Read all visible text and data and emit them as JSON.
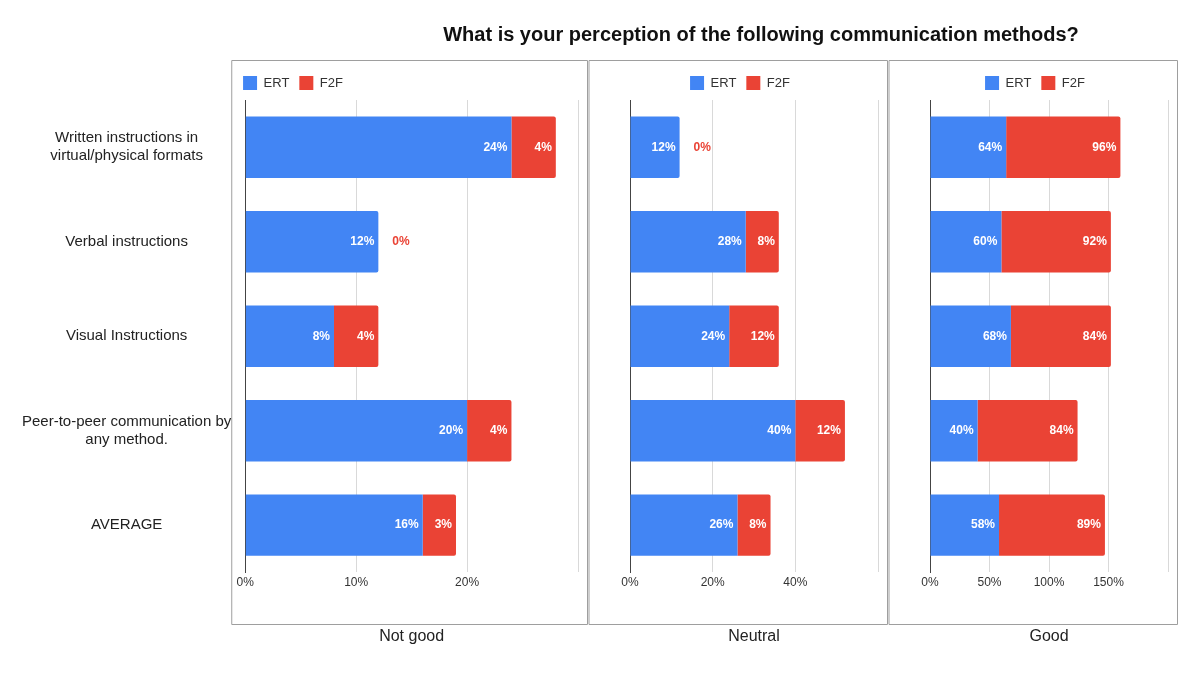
{
  "chart_data": [
    {
      "type": "bar",
      "orientation": "horizontal",
      "stacked": true,
      "title": "What is your perception of the following communication methods?",
      "xlabel": "Not good",
      "categories": [
        "Written instructions in virtual/physical formats",
        "Verbal instructions",
        "Visual Instructions",
        "Peer-to-peer communication by any method.",
        "AVERAGE"
      ],
      "series": [
        {
          "name": "ERT",
          "color": "#4285f4",
          "values": [
            24,
            12,
            8,
            20,
            16
          ],
          "value_labels": [
            "24%",
            "12%",
            "8%",
            "20%",
            "16%"
          ]
        },
        {
          "name": "F2F",
          "color": "#ea4335",
          "values": [
            4,
            0,
            4,
            4,
            3
          ],
          "value_labels": [
            "4%",
            "0%",
            "4%",
            "4%",
            "3%"
          ]
        }
      ],
      "xlim": [
        0,
        30
      ],
      "xticks": [
        {
          "value": 0,
          "label": "0%"
        },
        {
          "value": 10,
          "label": "10%"
        },
        {
          "value": 20,
          "label": "20%"
        },
        {
          "value": 30,
          "label": null
        }
      ],
      "grid": "x",
      "legend": "top"
    },
    {
      "type": "bar",
      "orientation": "horizontal",
      "stacked": true,
      "xlabel": "Neutral",
      "categories": [
        null,
        null,
        null,
        null,
        null
      ],
      "series": [
        {
          "name": "ERT",
          "color": "#4285f4",
          "values": [
            12,
            28,
            24,
            40,
            26
          ],
          "value_labels": [
            "12%",
            "28%",
            "24%",
            "40%",
            "26%"
          ]
        },
        {
          "name": "F2F",
          "color": "#ea4335",
          "values": [
            0,
            8,
            12,
            12,
            8
          ],
          "value_labels": [
            "0%",
            "8%",
            "12%",
            "12%",
            "8%"
          ]
        }
      ],
      "xlim": [
        0,
        60
      ],
      "xticks": [
        {
          "value": 0,
          "label": "0%"
        },
        {
          "value": 20,
          "label": "20%"
        },
        {
          "value": 40,
          "label": "40%"
        },
        {
          "value": 60,
          "label": null
        }
      ],
      "grid": "x",
      "legend": "top"
    },
    {
      "type": "bar",
      "orientation": "horizontal",
      "stacked": true,
      "xlabel": "Good",
      "categories": [
        null,
        null,
        null,
        null,
        null
      ],
      "series": [
        {
          "name": "ERT",
          "color": "#4285f4",
          "values": [
            64,
            60,
            68,
            40,
            58
          ],
          "value_labels": [
            "64%",
            "60%",
            "68%",
            "40%",
            "58%"
          ]
        },
        {
          "name": "F2F",
          "color": "#ea4335",
          "values": [
            96,
            92,
            84,
            84,
            89
          ],
          "value_labels": [
            "96%",
            "92%",
            "84%",
            "84%",
            "89%"
          ]
        }
      ],
      "xlim": [
        0,
        200
      ],
      "xticks": [
        {
          "value": 0,
          "label": "0%"
        },
        {
          "value": 50,
          "label": "50%"
        },
        {
          "value": 100,
          "label": "100%"
        },
        {
          "value": 150,
          "label": "150%"
        },
        {
          "value": 200,
          "label": null
        }
      ],
      "grid": "x",
      "legend": "top"
    }
  ]
}
